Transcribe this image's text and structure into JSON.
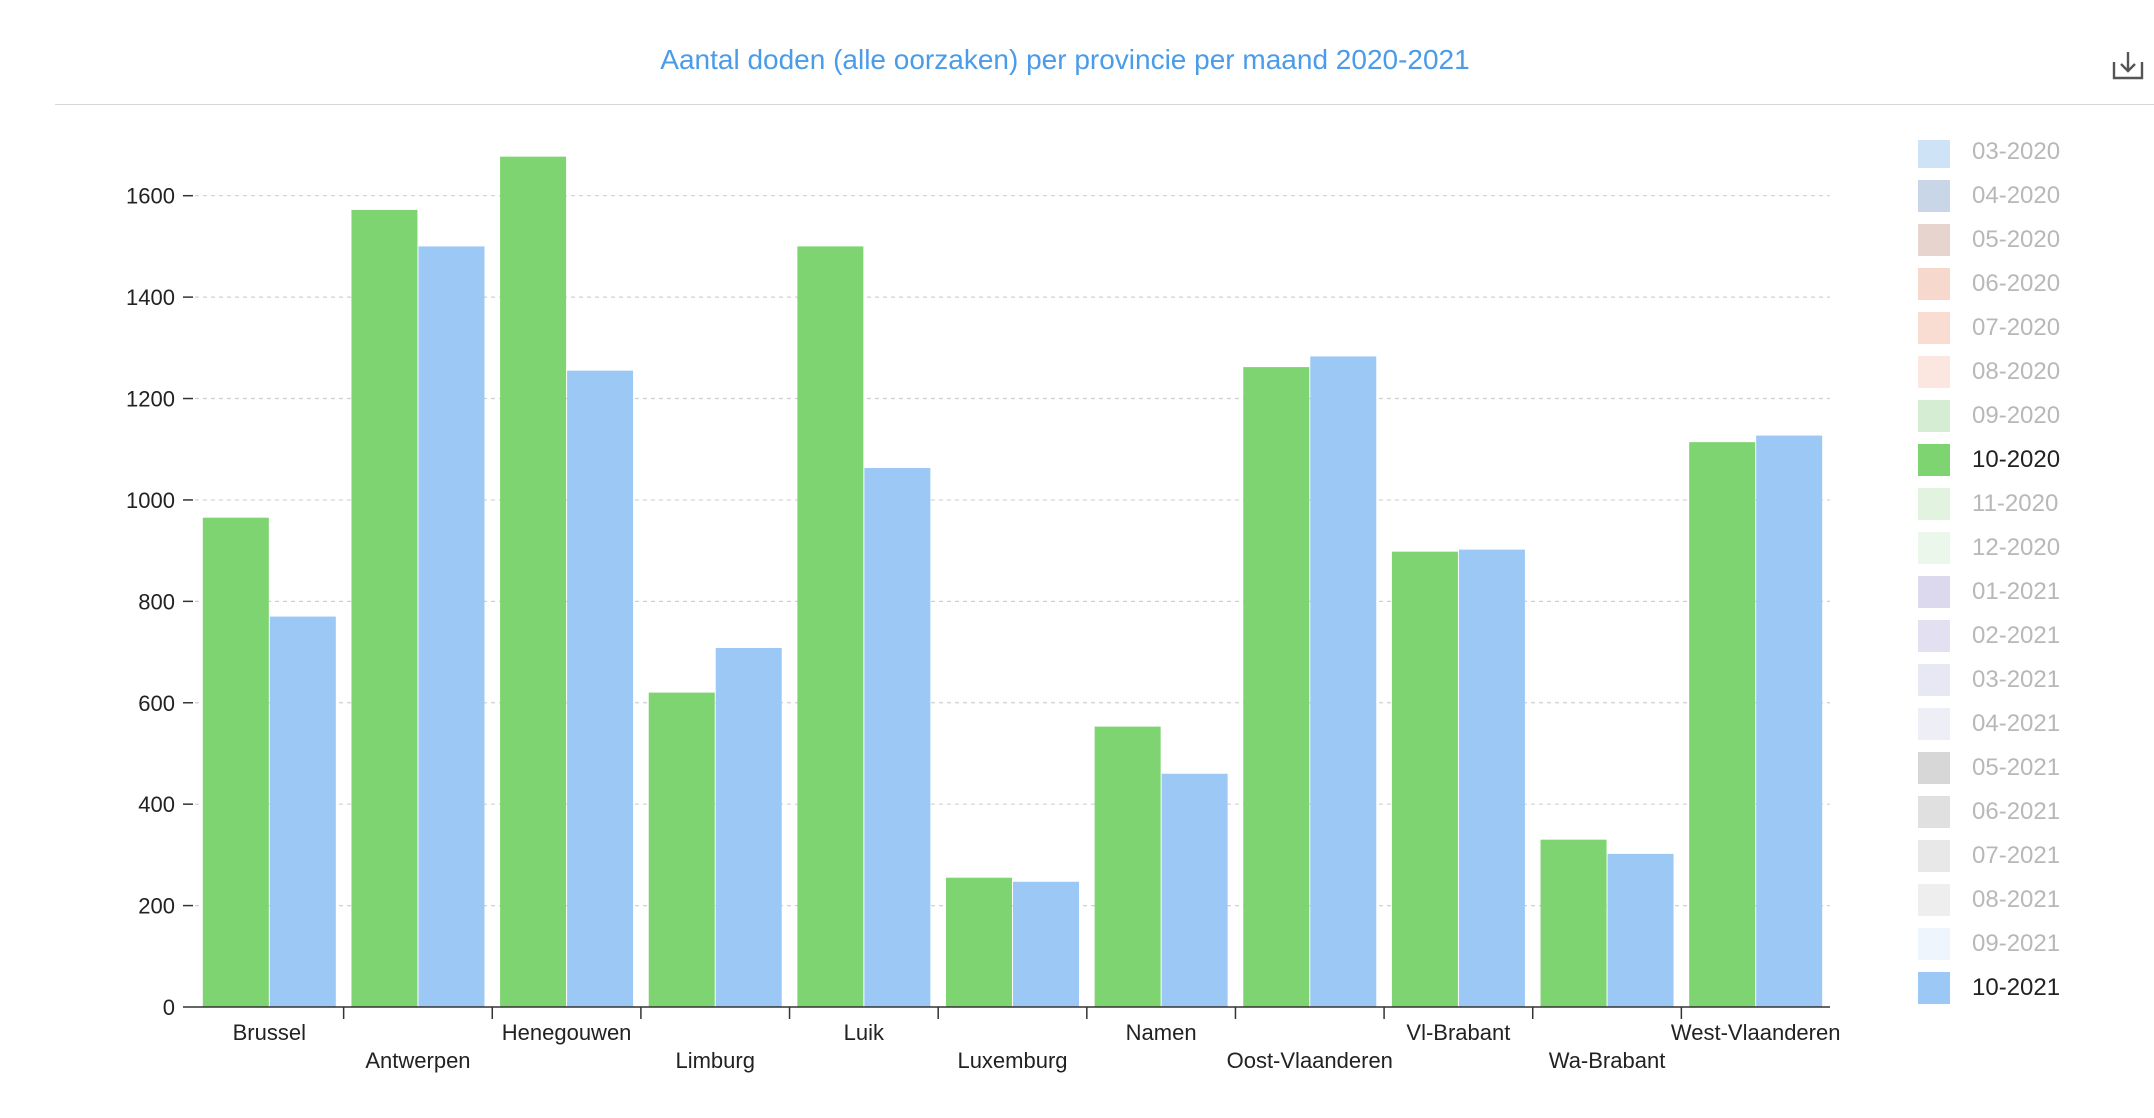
{
  "header": {
    "title": "Aantal doden (alle oorzaken) per provincie per maand 2020-2021",
    "download_icon": "download-icon"
  },
  "colors": {
    "title": "#4a9be8",
    "grid": "#d0d0d0",
    "axis": "#333333"
  },
  "legend": {
    "items": [
      {
        "label": "03-2020",
        "color": "#cfe3f7",
        "active": false
      },
      {
        "label": "04-2020",
        "color": "#c9d6e8",
        "active": false
      },
      {
        "label": "05-2020",
        "color": "#e8d4cf",
        "active": false
      },
      {
        "label": "06-2020",
        "color": "#f6d8cc",
        "active": false
      },
      {
        "label": "07-2020",
        "color": "#f9ddd3",
        "active": false
      },
      {
        "label": "08-2020",
        "color": "#fbe7e0",
        "active": false
      },
      {
        "label": "09-2020",
        "color": "#d4edd3",
        "active": false
      },
      {
        "label": "10-2020",
        "color": "#7ed470",
        "active": true
      },
      {
        "label": "11-2020",
        "color": "#e2f4e0",
        "active": false
      },
      {
        "label": "12-2020",
        "color": "#ebf7ea",
        "active": false
      },
      {
        "label": "01-2021",
        "color": "#dcd9ee",
        "active": false
      },
      {
        "label": "02-2021",
        "color": "#e2e0f1",
        "active": false
      },
      {
        "label": "03-2021",
        "color": "#e8e8f4",
        "active": false
      },
      {
        "label": "04-2021",
        "color": "#eeeef6",
        "active": false
      },
      {
        "label": "05-2021",
        "color": "#d7d7d7",
        "active": false
      },
      {
        "label": "06-2021",
        "color": "#e0e0e0",
        "active": false
      },
      {
        "label": "07-2021",
        "color": "#e8e8e8",
        "active": false
      },
      {
        "label": "08-2021",
        "color": "#eeeeee",
        "active": false
      },
      {
        "label": "09-2021",
        "color": "#eef5fc",
        "active": false
      },
      {
        "label": "10-2021",
        "color": "#9cc8f5",
        "active": true
      }
    ]
  },
  "chart_data": {
    "type": "bar",
    "title": "Aantal doden (alle oorzaken) per provincie per maand 2020-2021",
    "xlabel": "",
    "ylabel": "",
    "categories": [
      "Brussel",
      "Antwerpen",
      "Henegouwen",
      "Limburg",
      "Luik",
      "Luxemburg",
      "Namen",
      "Oost-Vlaanderen",
      "Vl-Brabant",
      "Wa-Brabant",
      "West-Vlaanderen"
    ],
    "series": [
      {
        "name": "10-2020",
        "color": "#7ed470",
        "values": [
          965,
          1572,
          1677,
          620,
          1500,
          255,
          553,
          1262,
          898,
          330,
          1114
        ]
      },
      {
        "name": "10-2021",
        "color": "#9cc8f5",
        "values": [
          770,
          1500,
          1255,
          708,
          1063,
          247,
          460,
          1283,
          902,
          302,
          1127
        ]
      }
    ],
    "ylim": [
      0,
      1700
    ],
    "yticks": [
      0,
      200,
      400,
      600,
      800,
      1000,
      1200,
      1400,
      1600
    ],
    "grid": true,
    "legend_position": "right"
  }
}
